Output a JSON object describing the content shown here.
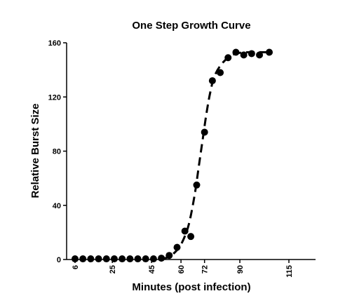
{
  "chart_data": {
    "type": "scatter",
    "title": "One Step Growth Curve",
    "xlabel": "Minutes (post infection)",
    "ylabel": "Relative Burst Size",
    "xlim": [
      0,
      120
    ],
    "ylim": [
      0,
      160
    ],
    "x_tick_labels": [
      "6",
      "25",
      "45",
      "60",
      "72",
      "90",
      "115"
    ],
    "x_tick_values": [
      6,
      25,
      45,
      60,
      72,
      90,
      115
    ],
    "y_tick_labels": [
      "0",
      "40",
      "80",
      "120",
      "160"
    ],
    "y_tick_values": [
      0,
      40,
      80,
      120,
      160
    ],
    "grid": false,
    "series": [
      {
        "marker": "filled-circle",
        "color": "#000000",
        "points": [
          {
            "x": 6,
            "y": 0.5
          },
          {
            "x": 10,
            "y": 0.5
          },
          {
            "x": 14,
            "y": 0.5
          },
          {
            "x": 18,
            "y": 0.5
          },
          {
            "x": 22,
            "y": 0.5
          },
          {
            "x": 26,
            "y": 0.5
          },
          {
            "x": 30,
            "y": 0.5
          },
          {
            "x": 34,
            "y": 0.5
          },
          {
            "x": 38,
            "y": 0.5
          },
          {
            "x": 42,
            "y": 0.5
          },
          {
            "x": 46,
            "y": 0.5
          },
          {
            "x": 50,
            "y": 1
          },
          {
            "x": 54,
            "y": 3
          },
          {
            "x": 58,
            "y": 9
          },
          {
            "x": 62,
            "y": 21
          },
          {
            "x": 65,
            "y": 17
          },
          {
            "x": 68,
            "y": 55
          },
          {
            "x": 72,
            "y": 94
          },
          {
            "x": 76,
            "y": 132
          },
          {
            "x": 80,
            "y": 138
          },
          {
            "x": 84,
            "y": 149
          },
          {
            "x": 88,
            "y": 153
          },
          {
            "x": 92,
            "y": 151
          },
          {
            "x": 96,
            "y": 152
          },
          {
            "x": 100,
            "y": 151
          },
          {
            "x": 105,
            "y": 153
          }
        ]
      }
    ],
    "fit_curve": {
      "style": "dashed",
      "color": "#000000",
      "points": [
        {
          "x": 50,
          "y": 0.5
        },
        {
          "x": 54,
          "y": 2
        },
        {
          "x": 58,
          "y": 7
        },
        {
          "x": 61,
          "y": 14
        },
        {
          "x": 64,
          "y": 26
        },
        {
          "x": 67,
          "y": 48
        },
        {
          "x": 69,
          "y": 68
        },
        {
          "x": 71,
          "y": 88
        },
        {
          "x": 73,
          "y": 108
        },
        {
          "x": 75,
          "y": 124
        },
        {
          "x": 77,
          "y": 135
        },
        {
          "x": 80,
          "y": 143
        },
        {
          "x": 84,
          "y": 149
        },
        {
          "x": 88,
          "y": 152
        },
        {
          "x": 94,
          "y": 153
        },
        {
          "x": 106,
          "y": 153
        }
      ]
    }
  }
}
